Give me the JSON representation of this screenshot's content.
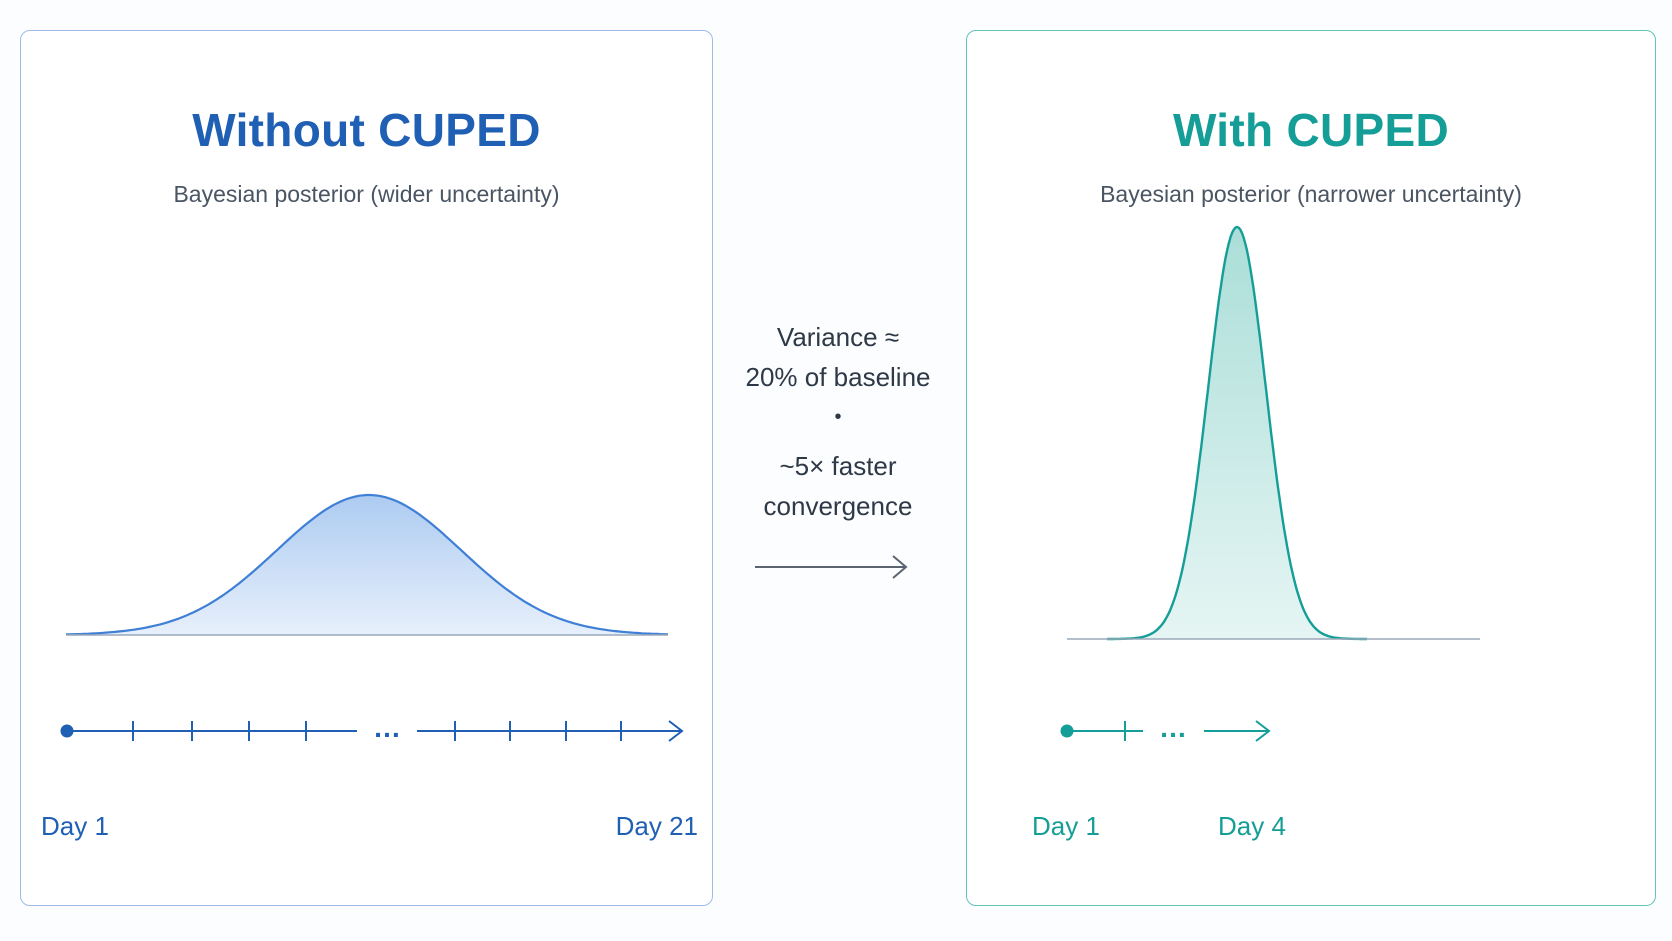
{
  "left_panel": {
    "title": "Without CUPED",
    "subtitle": "Bayesian posterior (wider uncertainty)",
    "timeline_start": "Day 1",
    "timeline_end": "Day 21",
    "timeline_ellipsis": "…",
    "color": "#1f5fb4"
  },
  "right_panel": {
    "title": "With CUPED",
    "subtitle": "Bayesian posterior (narrower uncertainty)",
    "timeline_start": "Day 1",
    "timeline_end": "Day 4",
    "timeline_ellipsis": "…",
    "color": "#159e97"
  },
  "center": {
    "line1": "Variance ≈",
    "line2": "20% of baseline",
    "separator": "•",
    "line3": "~5× faster",
    "line4": "convergence"
  }
}
